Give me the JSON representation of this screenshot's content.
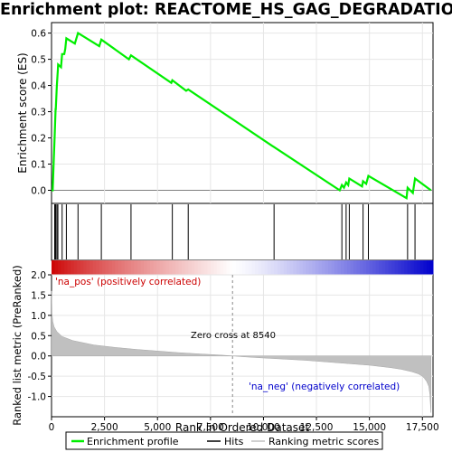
{
  "title": "Enrichment plot: REACTOME_HS_GAG_DEGRADATION",
  "chart_data": [
    {
      "type": "line",
      "panel": "enrichment-profile",
      "ylabel": "Enrichment score (ES)",
      "ylim": [
        -0.05,
        0.64
      ],
      "xlim": [
        0,
        18000
      ],
      "yticks": [
        0.0,
        0.1,
        0.2,
        0.3,
        0.4,
        0.5,
        0.6
      ],
      "ytick_labels": [
        "0.0",
        "0.1",
        "0.2",
        "0.3",
        "0.4",
        "0.5",
        "0.6"
      ],
      "grid": true,
      "color": "#00ee00",
      "series": [
        {
          "name": "Enrichment profile",
          "x": [
            0,
            55,
            100,
            150,
            190,
            200,
            250,
            300,
            310,
            450,
            500,
            600,
            650,
            700,
            1100,
            1250,
            2250,
            2350,
            3650,
            3750,
            5650,
            5700,
            6350,
            6450,
            10400,
            10500,
            13600,
            13700,
            13800,
            13900,
            14000,
            14050,
            14650,
            14700,
            14850,
            14950,
            16750,
            16800,
            17050,
            17150,
            17900
          ],
          "y": [
            0.0,
            0.0,
            0.1,
            0.21,
            0.31,
            0.31,
            0.4,
            0.46,
            0.48,
            0.47,
            0.52,
            0.52,
            0.54,
            0.58,
            0.56,
            0.6,
            0.55,
            0.575,
            0.5,
            0.515,
            0.41,
            0.42,
            0.38,
            0.385,
            0.17,
            0.165,
            0.0,
            0.02,
            0.01,
            0.03,
            0.02,
            0.045,
            0.015,
            0.035,
            0.025,
            0.055,
            -0.03,
            0.01,
            -0.01,
            0.045,
            0.0
          ]
        }
      ]
    },
    {
      "type": "scatter",
      "panel": "hits",
      "name": "Hits",
      "x": [
        150,
        190,
        250,
        300,
        500,
        700,
        1250,
        2350,
        3750,
        5700,
        6450,
        10500,
        13700,
        13900,
        14050,
        14700,
        14950,
        16800,
        17150
      ]
    },
    {
      "type": "area",
      "panel": "ranked-list-metric",
      "ylabel": "Ranked list metric (PreRanked)",
      "xlabel": "Rank in Ordered Dataset",
      "ylim": [
        -1.5,
        2.0
      ],
      "xlim": [
        0,
        18000
      ],
      "yticks": [
        -1.0,
        -0.5,
        0.0,
        0.5,
        1.0,
        1.5,
        2.0
      ],
      "ytick_labels": [
        "-1.0",
        "-0.5",
        "0.0",
        "0.5",
        "1.0",
        "1.5",
        "2.0"
      ],
      "xticks": [
        0,
        2500,
        5000,
        7500,
        10000,
        12500,
        15000,
        17500
      ],
      "xtick_labels": [
        "0",
        "2,500",
        "5,000",
        "7,500",
        "10,000",
        "12,500",
        "15,000",
        "17,500"
      ],
      "grid": true,
      "series": [
        {
          "name": "Ranking metric scores",
          "x": [
            0,
            20,
            60,
            120,
            250,
            500,
            1000,
            2000,
            3000,
            4000,
            5000,
            6000,
            7000,
            8000,
            8540,
            9000,
            10000,
            11000,
            12000,
            13000,
            14000,
            15000,
            16000,
            16500,
            17000,
            17300,
            17500,
            17600,
            17700,
            17800,
            17850,
            17900
          ],
          "y": [
            1.6,
            1.05,
            0.85,
            0.72,
            0.6,
            0.48,
            0.38,
            0.27,
            0.21,
            0.16,
            0.12,
            0.08,
            0.05,
            0.02,
            0.0,
            -0.02,
            -0.05,
            -0.08,
            -0.11,
            -0.15,
            -0.19,
            -0.23,
            -0.29,
            -0.33,
            -0.39,
            -0.44,
            -0.5,
            -0.56,
            -0.63,
            -0.75,
            -0.95,
            -1.4
          ]
        }
      ],
      "annotations": {
        "positive_label": "'na_pos' (positively correlated)",
        "negative_label": "'na_neg' (negatively correlated)",
        "zero_cross_label": "Zero cross at 8540",
        "zero_cross": 8540
      }
    }
  ],
  "legend": {
    "placement": "bottom",
    "items": [
      {
        "label": "Enrichment profile",
        "color": "#00ee00"
      },
      {
        "label": "Hits",
        "color": "#000000"
      },
      {
        "label": "Ranking metric scores",
        "color": "#c0c0c0"
      }
    ]
  }
}
